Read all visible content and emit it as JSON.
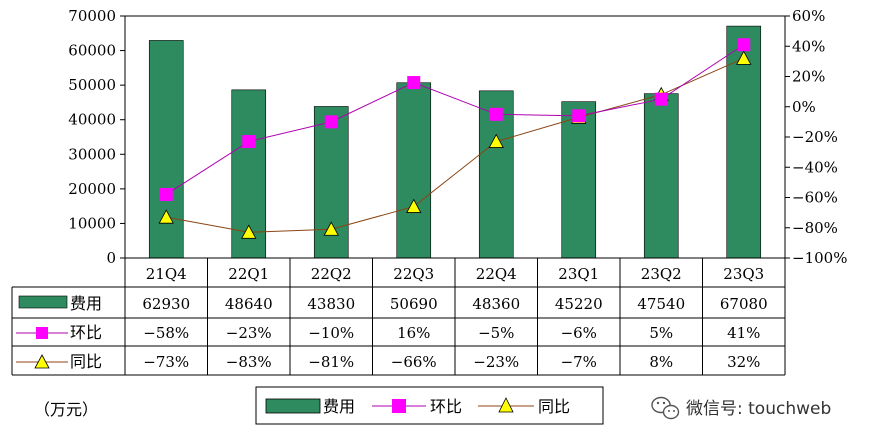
{
  "chart_data": {
    "type": "bar",
    "categories": [
      "21Q4",
      "22Q1",
      "22Q2",
      "22Q3",
      "22Q4",
      "23Q1",
      "23Q2",
      "23Q3"
    ],
    "series": [
      {
        "name": "费用",
        "kind": "bar",
        "axis": "left",
        "values": [
          62930,
          48640,
          43830,
          50690,
          48360,
          45220,
          47540,
          67080
        ],
        "labels": [
          "62930",
          "48640",
          "43830",
          "50690",
          "48360",
          "45220",
          "47540",
          "67080"
        ]
      },
      {
        "name": "环比",
        "kind": "line",
        "axis": "right",
        "values": [
          -58,
          -23,
          -10,
          16,
          -5,
          -6,
          5,
          41
        ],
        "labels": [
          "−58%",
          "−23%",
          "−10%",
          "16%",
          "−5%",
          "−6%",
          "5%",
          "41%"
        ]
      },
      {
        "name": "同比",
        "kind": "line",
        "axis": "right",
        "values": [
          -73,
          -83,
          -81,
          -66,
          -23,
          -7,
          8,
          32
        ],
        "labels": [
          "−73%",
          "−83%",
          "−81%",
          "−66%",
          "−23%",
          "−7%",
          "8%",
          "32%"
        ]
      }
    ],
    "ylim_left": [
      0,
      70000
    ],
    "ylim_right": [
      -100,
      60
    ],
    "left_ticks": [
      "0",
      "10000",
      "20000",
      "30000",
      "40000",
      "50000",
      "60000",
      "70000"
    ],
    "right_ticks": [
      "−100%",
      "−80%",
      "−60%",
      "−40%",
      "−20%",
      "0%",
      "20%",
      "40%",
      "60%"
    ],
    "unit_label": "（万元）",
    "legend_position": "bottom",
    "data_table": true,
    "grid": false
  },
  "colors": {
    "bar": "#2e8b5f",
    "mom": "#ff00ff",
    "mom_line": "#b000b0",
    "yoy": "#ffff00",
    "yoy_line": "#8b4513"
  },
  "watermark": {
    "icon": "wechat-icon",
    "text": "微信号: touchweb"
  }
}
